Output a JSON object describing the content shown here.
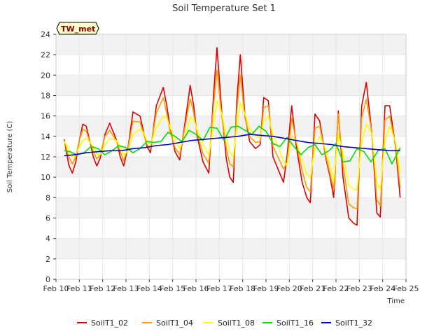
{
  "chart_data": {
    "type": "line",
    "title": "Soil Temperature Set 1",
    "xlabel": "Time",
    "ylabel": "Soil Temperature (C)",
    "badge": "TW_met",
    "ylim": [
      0,
      24
    ],
    "xlim": [
      0,
      15
    ],
    "yticks": [
      0,
      2,
      4,
      6,
      8,
      10,
      12,
      14,
      16,
      18,
      20,
      22,
      24
    ],
    "xticks": [
      {
        "pos": 0,
        "label": "Feb 10"
      },
      {
        "pos": 1,
        "label": "Feb 11"
      },
      {
        "pos": 2,
        "label": "Feb 12"
      },
      {
        "pos": 3,
        "label": "Feb 13"
      },
      {
        "pos": 4,
        "label": "Feb 14"
      },
      {
        "pos": 5,
        "label": "Feb 15"
      },
      {
        "pos": 6,
        "label": "Feb 16"
      },
      {
        "pos": 7,
        "label": "Feb 17"
      },
      {
        "pos": 8,
        "label": "Feb 18"
      },
      {
        "pos": 9,
        "label": "Feb 19"
      },
      {
        "pos": 10,
        "label": "Feb 20"
      },
      {
        "pos": 11,
        "label": "Feb 21"
      },
      {
        "pos": 12,
        "label": "Feb 22"
      },
      {
        "pos": 13,
        "label": "Feb 23"
      },
      {
        "pos": 14,
        "label": "Feb 24"
      },
      {
        "pos": 15,
        "label": "Feb 25"
      }
    ],
    "grid": true,
    "band_colors": [
      "#f2f2f2",
      "#ffffff"
    ],
    "legend_position": "bottom",
    "series": [
      {
        "name": "SoilT1_02",
        "color": "#dd0000",
        "x": [
          0.35,
          0.55,
          0.7,
          0.85,
          1.0,
          1.15,
          1.3,
          1.6,
          1.75,
          1.9,
          2.1,
          2.3,
          2.6,
          2.75,
          2.9,
          3.1,
          3.3,
          3.6,
          3.75,
          3.9,
          4.05,
          4.3,
          4.6,
          4.75,
          4.9,
          5.1,
          5.3,
          5.6,
          5.75,
          5.9,
          6.05,
          6.3,
          6.55,
          6.75,
          6.9,
          7.1,
          7.3,
          7.45,
          7.6,
          7.75,
          7.9,
          8.1,
          8.3,
          8.55,
          8.75,
          8.9,
          9.1,
          9.3,
          9.55,
          9.75,
          9.9,
          10.1,
          10.3,
          10.55,
          10.75,
          10.9,
          11.1,
          11.3,
          11.55,
          11.75,
          11.9,
          12.1,
          12.3,
          12.55,
          12.75,
          12.9,
          13.1,
          13.3,
          13.55,
          13.75,
          13.9,
          14.1,
          14.3,
          14.55,
          14.75
        ],
        "y": [
          13.7,
          11.2,
          10.4,
          11.5,
          13.6,
          15.2,
          15.0,
          12.0,
          11.1,
          11.9,
          14.2,
          15.3,
          13.6,
          12.0,
          11.1,
          13.1,
          16.4,
          16.0,
          14.5,
          13.0,
          12.4,
          17.0,
          18.8,
          17.0,
          14.7,
          12.5,
          11.7,
          16.5,
          19.0,
          17.0,
          14.0,
          11.5,
          10.4,
          18.0,
          22.7,
          16.5,
          11.8,
          10.0,
          9.5,
          17.5,
          22.0,
          16.0,
          13.5,
          12.8,
          13.2,
          17.8,
          17.5,
          12.0,
          10.6,
          9.5,
          12.0,
          17.0,
          13.0,
          9.5,
          8.0,
          7.5,
          16.2,
          15.5,
          12.0,
          10.0,
          8.0,
          16.5,
          10.0,
          6.0,
          5.5,
          5.3,
          17.0,
          19.3,
          14.0,
          6.5,
          6.1,
          17.0,
          17.0,
          13.0,
          8.0
        ]
      },
      {
        "name": "SoilT1_04",
        "color": "#ff9900",
        "x": [
          0.35,
          0.55,
          0.7,
          0.85,
          1.0,
          1.15,
          1.3,
          1.6,
          1.75,
          1.9,
          2.1,
          2.3,
          2.6,
          2.75,
          2.9,
          3.1,
          3.3,
          3.6,
          3.75,
          3.9,
          4.05,
          4.3,
          4.6,
          4.75,
          4.9,
          5.1,
          5.3,
          5.6,
          5.75,
          5.9,
          6.05,
          6.3,
          6.55,
          6.75,
          6.9,
          7.1,
          7.3,
          7.45,
          7.6,
          7.75,
          7.9,
          8.1,
          8.3,
          8.55,
          8.75,
          8.9,
          9.1,
          9.3,
          9.55,
          9.75,
          9.9,
          10.1,
          10.3,
          10.55,
          10.75,
          10.9,
          11.1,
          11.3,
          11.55,
          11.75,
          11.9,
          12.1,
          12.3,
          12.55,
          12.75,
          12.9,
          13.1,
          13.3,
          13.55,
          13.75,
          13.9,
          14.1,
          14.3,
          14.55,
          14.75
        ],
        "y": [
          13.6,
          12.0,
          11.3,
          12.0,
          13.6,
          14.7,
          14.5,
          12.5,
          11.8,
          12.2,
          14.0,
          14.6,
          13.5,
          12.5,
          11.6,
          13.0,
          15.5,
          15.4,
          14.3,
          13.2,
          12.8,
          16.3,
          17.8,
          16.2,
          14.4,
          12.9,
          12.2,
          15.8,
          17.7,
          16.3,
          14.2,
          12.3,
          11.4,
          17.0,
          20.5,
          16.0,
          12.8,
          11.3,
          11.0,
          16.5,
          20.0,
          15.8,
          14.0,
          13.4,
          13.5,
          16.8,
          17.0,
          13.0,
          11.8,
          10.8,
          11.4,
          15.8,
          13.5,
          10.6,
          9.0,
          8.6,
          14.8,
          15.0,
          12.2,
          10.3,
          8.8,
          16.2,
          11.2,
          7.4,
          7.0,
          6.9,
          15.8,
          17.6,
          14.2,
          7.8,
          7.2,
          15.6,
          16.0,
          13.2,
          9.0
        ]
      },
      {
        "name": "SoilT1_08",
        "color": "#ffff00",
        "x": [
          0.35,
          0.55,
          0.7,
          0.85,
          1.0,
          1.15,
          1.3,
          1.6,
          1.75,
          1.9,
          2.1,
          2.3,
          2.6,
          2.75,
          2.9,
          3.1,
          3.3,
          3.6,
          3.75,
          3.9,
          4.05,
          4.3,
          4.6,
          4.75,
          4.9,
          5.1,
          5.3,
          5.6,
          5.75,
          5.9,
          6.05,
          6.3,
          6.55,
          6.75,
          6.9,
          7.1,
          7.3,
          7.45,
          7.6,
          7.75,
          7.9,
          8.1,
          8.3,
          8.55,
          8.75,
          8.9,
          9.1,
          9.3,
          9.55,
          9.75,
          9.9,
          10.1,
          10.3,
          10.55,
          10.75,
          10.9,
          11.1,
          11.3,
          11.55,
          11.75,
          11.9,
          12.1,
          12.3,
          12.55,
          12.75,
          12.9,
          13.1,
          13.3,
          13.55,
          13.75,
          13.9,
          14.1,
          14.3,
          14.55,
          14.75
        ],
        "y": [
          13.5,
          12.8,
          12.0,
          12.2,
          13.0,
          13.6,
          13.8,
          13.0,
          12.3,
          12.2,
          13.2,
          13.8,
          13.6,
          13.0,
          12.2,
          12.6,
          14.2,
          14.7,
          14.4,
          13.6,
          13.2,
          14.8,
          16.0,
          15.8,
          14.9,
          13.6,
          12.8,
          14.5,
          15.8,
          15.7,
          14.6,
          13.2,
          12.2,
          15.0,
          17.5,
          16.3,
          14.0,
          12.4,
          12.0,
          14.8,
          17.3,
          16.2,
          14.8,
          14.0,
          13.9,
          15.5,
          16.0,
          14.2,
          12.8,
          11.6,
          11.2,
          14.0,
          13.6,
          11.6,
          10.3,
          10.0,
          12.8,
          14.0,
          12.8,
          11.0,
          9.6,
          14.2,
          12.4,
          9.2,
          8.8,
          8.8,
          13.4,
          15.2,
          14.2,
          9.4,
          8.8,
          13.5,
          15.0,
          13.5,
          10.5
        ]
      },
      {
        "name": "SoilT1_16",
        "color": "#00dd00",
        "x": [
          0.35,
          0.6,
          0.9,
          1.2,
          1.5,
          1.8,
          2.1,
          2.4,
          2.7,
          3.0,
          3.3,
          3.6,
          3.9,
          4.2,
          4.5,
          4.8,
          5.1,
          5.4,
          5.7,
          6.0,
          6.3,
          6.6,
          6.9,
          7.2,
          7.5,
          7.8,
          8.1,
          8.4,
          8.7,
          9.0,
          9.3,
          9.6,
          9.9,
          10.2,
          10.5,
          10.8,
          11.1,
          11.4,
          11.7,
          12.0,
          12.3,
          12.6,
          12.9,
          13.2,
          13.5,
          13.8,
          14.1,
          14.4,
          14.75
        ],
        "y": [
          12.6,
          12.5,
          12.2,
          12.4,
          13.0,
          12.8,
          12.2,
          12.6,
          13.1,
          12.9,
          12.4,
          12.8,
          13.5,
          13.4,
          13.5,
          14.4,
          14.0,
          13.5,
          14.6,
          14.2,
          13.6,
          14.9,
          14.8,
          13.6,
          14.9,
          15.0,
          14.6,
          14.2,
          15.0,
          14.5,
          13.3,
          13.0,
          13.9,
          13.0,
          12.2,
          12.9,
          13.2,
          12.2,
          12.6,
          13.3,
          11.5,
          11.6,
          12.8,
          12.5,
          11.5,
          12.6,
          12.8,
          11.3,
          12.9
        ]
      },
      {
        "name": "SoilT1_32",
        "color": "#0000cc",
        "x": [
          0.35,
          0.8,
          1.3,
          1.8,
          2.3,
          2.8,
          3.3,
          3.8,
          4.3,
          4.8,
          5.3,
          5.8,
          6.3,
          6.8,
          7.3,
          7.8,
          8.3,
          8.8,
          9.3,
          9.8,
          10.3,
          10.8,
          11.3,
          11.8,
          12.3,
          12.8,
          13.3,
          13.8,
          14.3,
          14.75
        ],
        "y": [
          12.1,
          12.2,
          12.4,
          12.5,
          12.6,
          12.6,
          12.8,
          12.9,
          13.1,
          13.2,
          13.4,
          13.6,
          13.7,
          13.8,
          13.9,
          14.0,
          14.2,
          14.1,
          14.0,
          13.8,
          13.6,
          13.4,
          13.3,
          13.2,
          13.0,
          12.9,
          12.8,
          12.7,
          12.6,
          12.6
        ]
      }
    ]
  }
}
